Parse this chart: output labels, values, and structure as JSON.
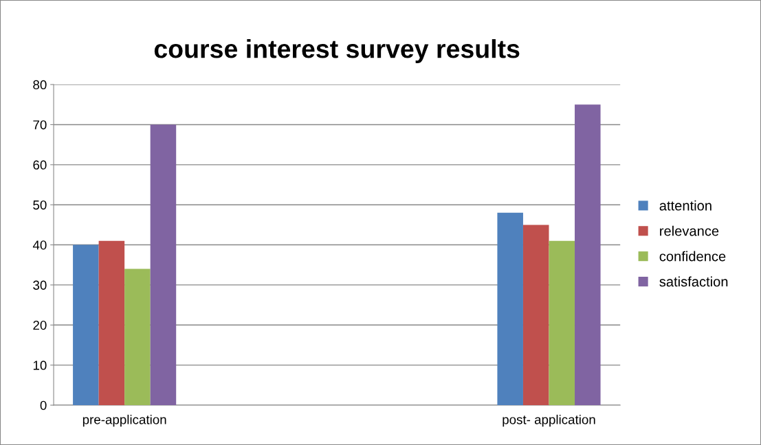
{
  "chart_data": {
    "type": "bar",
    "title": "course interest survey results",
    "categories": [
      "pre-application",
      "post- application"
    ],
    "series": [
      {
        "name": "attention",
        "color": "#4f81bd",
        "values": [
          40,
          48
        ]
      },
      {
        "name": "relevance",
        "color": "#c0504d",
        "values": [
          41,
          45
        ]
      },
      {
        "name": "confidence",
        "color": "#9bbb59",
        "values": [
          34,
          41
        ]
      },
      {
        "name": "satisfaction",
        "color": "#8064a2",
        "values": [
          70,
          75
        ]
      }
    ],
    "ylim": [
      0,
      80
    ],
    "yticks": [
      0,
      10,
      20,
      30,
      40,
      50,
      60,
      70,
      80
    ],
    "grid": "y",
    "legend": "right"
  }
}
